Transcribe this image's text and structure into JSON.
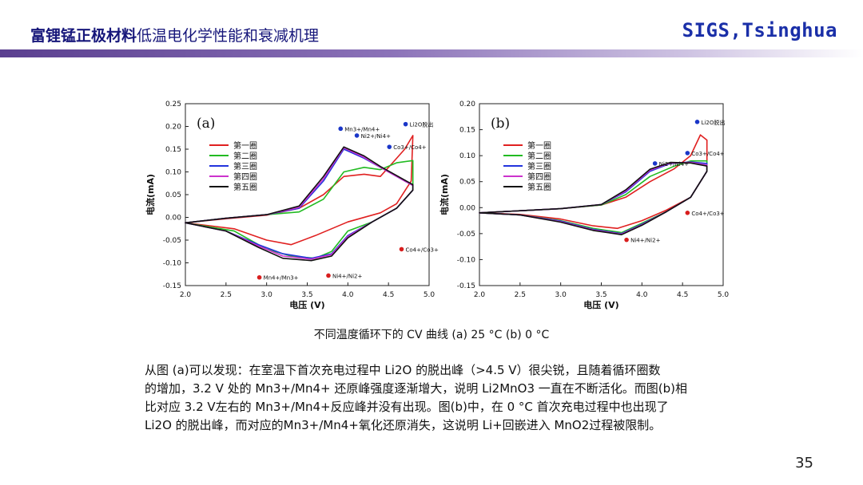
{
  "header": {
    "title_bold": "富锂锰正极材料",
    "title_rest": "低温电化学性能和衰减机理",
    "brand": "SIGS,Tsinghua"
  },
  "caption": "不同温度循环下的 CV 曲线 (a) 25 °C (b) 0 °C",
  "paragraph": {
    "line1": "从图 (a)可以发现：在室温下首次充电过程中 Li2O 的脱出峰（>4.5 V）很尖锐，且随着循环圈数",
    "line2": "的增加，3.2 V 处的 Mn3+/Mn4+ 还原峰强度逐渐增大，说明 Li2MnO3 一直在不断活化。而图(b)相",
    "line3": "比对应 3.2 V左右的 Mn3+/Mn4+反应峰并没有出现。图(b)中，在 0 °C 首次充电过程中也出现了",
    "line4": "Li2O 的脱出峰，而对应的Mn3+/Mn4+氧化还原消失，这说明 Li+回嵌进入 MnO2过程被限制。"
  },
  "page_number": "35",
  "chart_data": [
    {
      "type": "line",
      "panel_label": "(a)",
      "title": "",
      "xlabel": "电压 (V)",
      "ylabel": "电流(mA)",
      "xlim": [
        2.0,
        5.0
      ],
      "ylim": [
        -0.15,
        0.25
      ],
      "xticks": [
        "2.0",
        "2.5",
        "3.0",
        "3.5",
        "4.0",
        "4.5",
        "5.0"
      ],
      "yticks": [
        "-0.15",
        "-0.10",
        "-0.05",
        "0.00",
        "0.05",
        "0.10",
        "0.15",
        "0.20",
        "0.25"
      ],
      "legend": [
        "第一圈",
        "第二圈",
        "第三圈",
        "第四圈",
        "第五圈"
      ],
      "colors": [
        "#e02020",
        "#22bb22",
        "#2233dd",
        "#cc33cc",
        "#111111"
      ],
      "series": [
        {
          "name": "第一圈",
          "points": [
            [
              2.0,
              -0.012
            ],
            [
              2.5,
              -0.003
            ],
            [
              3.0,
              0.005
            ],
            [
              3.4,
              0.02
            ],
            [
              3.7,
              0.05
            ],
            [
              3.95,
              0.09
            ],
            [
              4.2,
              0.095
            ],
            [
              4.4,
              0.09
            ],
            [
              4.55,
              0.12
            ],
            [
              4.7,
              0.15
            ],
            [
              4.8,
              0.18
            ],
            [
              4.78,
              0.08
            ],
            [
              4.6,
              0.03
            ],
            [
              4.4,
              0.01
            ],
            [
              4.0,
              -0.01
            ],
            [
              3.6,
              -0.04
            ],
            [
              3.3,
              -0.06
            ],
            [
              3.0,
              -0.05
            ],
            [
              2.6,
              -0.025
            ],
            [
              2.0,
              -0.012
            ]
          ]
        },
        {
          "name": "第二圈",
          "points": [
            [
              2.0,
              -0.012
            ],
            [
              2.5,
              -0.002
            ],
            [
              3.0,
              0.006
            ],
            [
              3.4,
              0.012
            ],
            [
              3.7,
              0.04
            ],
            [
              3.95,
              0.1
            ],
            [
              4.2,
              0.11
            ],
            [
              4.4,
              0.105
            ],
            [
              4.6,
              0.12
            ],
            [
              4.8,
              0.125
            ],
            [
              4.8,
              0.06
            ],
            [
              4.6,
              0.02
            ],
            [
              4.3,
              -0.01
            ],
            [
              4.0,
              -0.03
            ],
            [
              3.8,
              -0.075
            ],
            [
              3.6,
              -0.09
            ],
            [
              3.3,
              -0.085
            ],
            [
              3.0,
              -0.07
            ],
            [
              2.6,
              -0.03
            ],
            [
              2.0,
              -0.012
            ]
          ]
        },
        {
          "name": "第三圈",
          "points": [
            [
              2.0,
              -0.012
            ],
            [
              2.5,
              -0.002
            ],
            [
              3.0,
              0.006
            ],
            [
              3.4,
              0.02
            ],
            [
              3.7,
              0.08
            ],
            [
              3.95,
              0.15
            ],
            [
              4.2,
              0.13
            ],
            [
              4.4,
              0.11
            ],
            [
              4.6,
              0.09
            ],
            [
              4.8,
              0.07
            ],
            [
              4.8,
              0.06
            ],
            [
              4.6,
              0.02
            ],
            [
              4.3,
              -0.01
            ],
            [
              4.0,
              -0.04
            ],
            [
              3.8,
              -0.08
            ],
            [
              3.55,
              -0.09
            ],
            [
              3.2,
              -0.08
            ],
            [
              2.9,
              -0.06
            ],
            [
              2.5,
              -0.03
            ],
            [
              2.0,
              -0.012
            ]
          ]
        },
        {
          "name": "第四圈",
          "points": [
            [
              2.0,
              -0.012
            ],
            [
              2.5,
              -0.002
            ],
            [
              3.0,
              0.006
            ],
            [
              3.4,
              0.022
            ],
            [
              3.7,
              0.085
            ],
            [
              3.95,
              0.153
            ],
            [
              4.2,
              0.132
            ],
            [
              4.4,
              0.11
            ],
            [
              4.6,
              0.09
            ],
            [
              4.8,
              0.07
            ],
            [
              4.8,
              0.06
            ],
            [
              4.6,
              0.02
            ],
            [
              4.3,
              -0.01
            ],
            [
              4.0,
              -0.042
            ],
            [
              3.8,
              -0.082
            ],
            [
              3.55,
              -0.092
            ],
            [
              3.2,
              -0.085
            ],
            [
              2.9,
              -0.063
            ],
            [
              2.5,
              -0.03
            ],
            [
              2.0,
              -0.012
            ]
          ]
        },
        {
          "name": "第五圈",
          "points": [
            [
              2.0,
              -0.012
            ],
            [
              2.5,
              -0.002
            ],
            [
              3.0,
              0.006
            ],
            [
              3.4,
              0.025
            ],
            [
              3.7,
              0.09
            ],
            [
              3.95,
              0.155
            ],
            [
              4.2,
              0.135
            ],
            [
              4.4,
              0.112
            ],
            [
              4.6,
              0.092
            ],
            [
              4.8,
              0.072
            ],
            [
              4.8,
              0.06
            ],
            [
              4.6,
              0.02
            ],
            [
              4.3,
              -0.01
            ],
            [
              4.0,
              -0.045
            ],
            [
              3.8,
              -0.085
            ],
            [
              3.55,
              -0.095
            ],
            [
              3.2,
              -0.09
            ],
            [
              2.9,
              -0.066
            ],
            [
              2.5,
              -0.03
            ],
            [
              2.0,
              -0.012
            ]
          ]
        }
      ],
      "annotations": [
        {
          "text": "Mn3+/Mn4+",
          "x": 3.95,
          "y": 0.195
        },
        {
          "text": "Ni2+/Ni4+",
          "x": 4.15,
          "y": 0.18
        },
        {
          "text": "Li2O脱出",
          "x": 4.75,
          "y": 0.205
        },
        {
          "text": "Co3+/Co4+",
          "x": 4.55,
          "y": 0.155
        },
        {
          "text": "Co4+/Co3+",
          "x": 4.7,
          "y": -0.07
        },
        {
          "text": "Ni4+/Ni2+",
          "x": 3.8,
          "y": -0.128
        },
        {
          "text": "Mn4+/Mn3+",
          "x": 2.95,
          "y": -0.132
        }
      ]
    },
    {
      "type": "line",
      "panel_label": "(b)",
      "title": "",
      "xlabel": "电压 (V)",
      "ylabel": "电流(mA)",
      "xlim": [
        2.0,
        5.0
      ],
      "ylim": [
        -0.15,
        0.2
      ],
      "xticks": [
        "2.0",
        "2.5",
        "3.0",
        "3.5",
        "4.0",
        "4.5",
        "5.0"
      ],
      "yticks": [
        "-0.15",
        "-0.10",
        "-0.05",
        "0.00",
        "0.05",
        "0.10",
        "0.15",
        "0.20"
      ],
      "legend": [
        "第一圈",
        "第二圈",
        "第三圈",
        "第四圈",
        "第五圈"
      ],
      "colors": [
        "#e02020",
        "#22bb22",
        "#2233dd",
        "#cc33cc",
        "#111111"
      ],
      "series": [
        {
          "name": "第一圈",
          "points": [
            [
              2.0,
              -0.01
            ],
            [
              2.5,
              -0.006
            ],
            [
              3.0,
              -0.002
            ],
            [
              3.5,
              0.005
            ],
            [
              3.8,
              0.02
            ],
            [
              4.1,
              0.05
            ],
            [
              4.4,
              0.075
            ],
            [
              4.6,
              0.1
            ],
            [
              4.72,
              0.14
            ],
            [
              4.8,
              0.13
            ],
            [
              4.8,
              0.07
            ],
            [
              4.6,
              0.02
            ],
            [
              4.3,
              -0.005
            ],
            [
              4.0,
              -0.025
            ],
            [
              3.7,
              -0.04
            ],
            [
              3.4,
              -0.035
            ],
            [
              3.0,
              -0.022
            ],
            [
              2.5,
              -0.013
            ],
            [
              2.0,
              -0.01
            ]
          ]
        },
        {
          "name": "第二圈",
          "points": [
            [
              2.0,
              -0.01
            ],
            [
              2.5,
              -0.006
            ],
            [
              3.0,
              -0.002
            ],
            [
              3.5,
              0.005
            ],
            [
              3.8,
              0.025
            ],
            [
              4.1,
              0.06
            ],
            [
              4.4,
              0.08
            ],
            [
              4.6,
              0.09
            ],
            [
              4.8,
              0.09
            ],
            [
              4.8,
              0.07
            ],
            [
              4.6,
              0.02
            ],
            [
              4.3,
              -0.008
            ],
            [
              4.0,
              -0.03
            ],
            [
              3.75,
              -0.048
            ],
            [
              3.4,
              -0.04
            ],
            [
              3.0,
              -0.025
            ],
            [
              2.5,
              -0.014
            ],
            [
              2.0,
              -0.01
            ]
          ]
        },
        {
          "name": "第三圈",
          "points": [
            [
              2.0,
              -0.01
            ],
            [
              2.5,
              -0.006
            ],
            [
              3.0,
              -0.002
            ],
            [
              3.5,
              0.006
            ],
            [
              3.8,
              0.03
            ],
            [
              4.1,
              0.07
            ],
            [
              4.35,
              0.085
            ],
            [
              4.6,
              0.088
            ],
            [
              4.8,
              0.085
            ],
            [
              4.8,
              0.07
            ],
            [
              4.6,
              0.02
            ],
            [
              4.3,
              -0.008
            ],
            [
              4.0,
              -0.032
            ],
            [
              3.75,
              -0.05
            ],
            [
              3.4,
              -0.042
            ],
            [
              3.0,
              -0.026
            ],
            [
              2.5,
              -0.014
            ],
            [
              2.0,
              -0.01
            ]
          ]
        },
        {
          "name": "第四圈",
          "points": [
            [
              2.0,
              -0.01
            ],
            [
              2.5,
              -0.006
            ],
            [
              3.0,
              -0.002
            ],
            [
              3.5,
              0.006
            ],
            [
              3.8,
              0.032
            ],
            [
              4.1,
              0.072
            ],
            [
              4.35,
              0.086
            ],
            [
              4.6,
              0.087
            ],
            [
              4.8,
              0.082
            ],
            [
              4.8,
              0.07
            ],
            [
              4.6,
              0.02
            ],
            [
              4.3,
              -0.008
            ],
            [
              4.0,
              -0.033
            ],
            [
              3.75,
              -0.051
            ],
            [
              3.4,
              -0.043
            ],
            [
              3.0,
              -0.027
            ],
            [
              2.5,
              -0.014
            ],
            [
              2.0,
              -0.01
            ]
          ]
        },
        {
          "name": "第五圈",
          "points": [
            [
              2.0,
              -0.01
            ],
            [
              2.5,
              -0.006
            ],
            [
              3.0,
              -0.002
            ],
            [
              3.5,
              0.006
            ],
            [
              3.8,
              0.034
            ],
            [
              4.1,
              0.074
            ],
            [
              4.35,
              0.087
            ],
            [
              4.6,
              0.086
            ],
            [
              4.8,
              0.08
            ],
            [
              4.8,
              0.07
            ],
            [
              4.6,
              0.02
            ],
            [
              4.3,
              -0.008
            ],
            [
              4.0,
              -0.034
            ],
            [
              3.75,
              -0.052
            ],
            [
              3.4,
              -0.044
            ],
            [
              3.0,
              -0.028
            ],
            [
              2.5,
              -0.014
            ],
            [
              2.0,
              -0.01
            ]
          ]
        }
      ],
      "annotations": [
        {
          "text": "Li2O脱出",
          "x": 4.72,
          "y": 0.165
        },
        {
          "text": "Co3+/Co4+",
          "x": 4.6,
          "y": 0.105
        },
        {
          "text": "Ni2+/Ni4+",
          "x": 4.2,
          "y": 0.085
        },
        {
          "text": "Co4+/Co3+",
          "x": 4.6,
          "y": -0.01
        },
        {
          "text": "Ni4+/Ni2+",
          "x": 3.85,
          "y": -0.062
        }
      ]
    }
  ]
}
